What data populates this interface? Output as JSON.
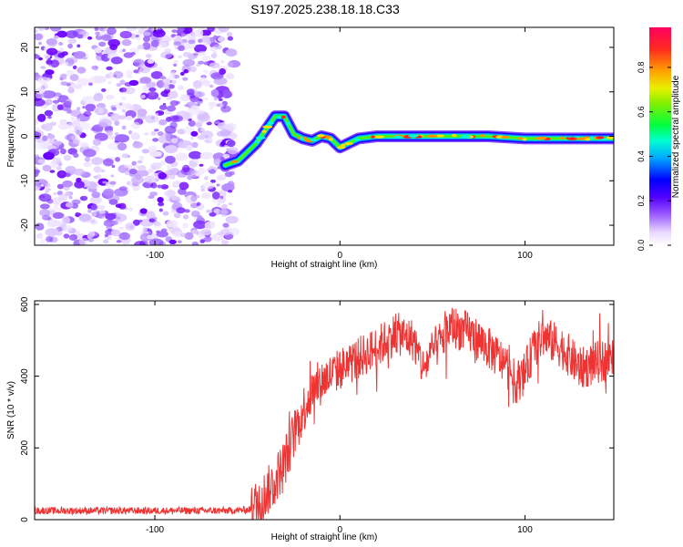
{
  "title": "S197.2025.238.18.18.C33",
  "chart_data": [
    {
      "type": "heatmap",
      "xlabel": "Height of straight line (km)",
      "ylabel": "Frequency (Hz)",
      "xlim": [
        -165,
        148
      ],
      "ylim": [
        -24.5,
        24.5
      ],
      "xticks": [
        -100,
        0,
        100
      ],
      "yticks": [
        20,
        10,
        0,
        -10,
        -20
      ],
      "noise_region_x": [
        -165,
        -60
      ],
      "ridge": {
        "x": [
          -62,
          -55,
          -50,
          -45,
          -40,
          -35,
          -30,
          -25,
          -20,
          -15,
          -10,
          -5,
          0,
          5,
          10,
          20,
          40,
          60,
          80,
          100,
          120,
          148
        ],
        "freq": [
          -6.5,
          -5.5,
          -3.5,
          -1.5,
          1.5,
          4.5,
          4.5,
          0.5,
          -0.5,
          -1.0,
          0.0,
          -0.5,
          -2.5,
          -1.5,
          -0.5,
          0.0,
          0.0,
          0.0,
          0.0,
          -0.5,
          -0.5,
          -0.5
        ]
      },
      "colorbar": {
        "label": "Normalized spectral amplitude",
        "ticks": [
          "0.0",
          "0.2",
          "0.4",
          "0.6",
          "0.8"
        ],
        "tick_values": [
          0.0,
          0.2,
          0.4,
          0.6,
          0.8
        ],
        "range": [
          0,
          0.98
        ],
        "colors": [
          "#ffffff",
          "#b38fea",
          "#6a00ff",
          "#0000ff",
          "#00c8ff",
          "#00ff80",
          "#4ee300",
          "#d4f000",
          "#ffa000",
          "#ff0033"
        ]
      }
    },
    {
      "type": "line",
      "xlabel": "Height of straight line (km)",
      "ylabel": "SNR (10 * v/v)",
      "xlim": [
        -165,
        148
      ],
      "ylim": [
        0,
        610
      ],
      "xticks": [
        -100,
        0,
        100
      ],
      "yticks": [
        0,
        200,
        400,
        600
      ],
      "line_color": "#ee3333",
      "series": [
        {
          "name": "SNR",
          "x": [
            -165,
            -120,
            -60,
            -48,
            -42,
            -36,
            -30,
            -24,
            -18,
            -12,
            -6,
            0,
            10,
            20,
            30,
            40,
            45,
            50,
            55,
            60,
            70,
            80,
            90,
            95,
            100,
            105,
            110,
            120,
            130,
            140,
            148
          ],
          "y": [
            25,
            25,
            25,
            28,
            60,
            100,
            160,
            250,
            330,
            380,
            400,
            420,
            450,
            480,
            520,
            500,
            420,
            470,
            500,
            540,
            520,
            480,
            430,
            380,
            410,
            480,
            510,
            480,
            420,
            440,
            450
          ]
        }
      ]
    }
  ]
}
